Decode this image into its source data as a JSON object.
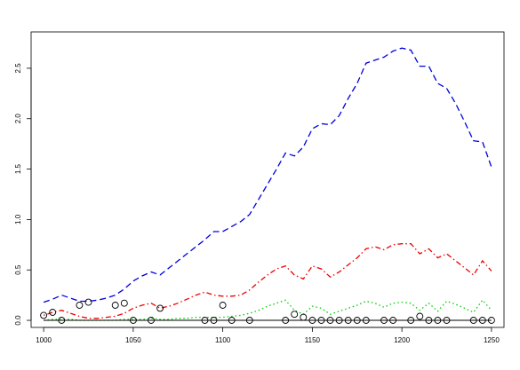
{
  "chart_data": {
    "type": "line",
    "xlim": [
      993,
      1257
    ],
    "ylim": [
      -0.07,
      2.86
    ],
    "x_ticks": [
      1000,
      1050,
      1100,
      1150,
      1200,
      1250
    ],
    "y_ticks": [
      0.0,
      0.5,
      1.0,
      1.5,
      2.0,
      2.5
    ],
    "x_tick_labels": [
      "1000",
      "1050",
      "1100",
      "1150",
      "1200",
      "1250"
    ],
    "y_tick_labels": [
      "0.0",
      "0.5",
      "1.0",
      "1.5",
      "2.0",
      "2.5"
    ],
    "series": [
      {
        "style": "dashed",
        "color": "#0000dd",
        "x": [
          1000,
          1005,
          1010,
          1015,
          1020,
          1025,
          1030,
          1035,
          1040,
          1045,
          1050,
          1055,
          1060,
          1065,
          1070,
          1075,
          1080,
          1085,
          1090,
          1095,
          1100,
          1105,
          1110,
          1115,
          1120,
          1125,
          1130,
          1135,
          1140,
          1145,
          1150,
          1155,
          1160,
          1165,
          1170,
          1175,
          1180,
          1185,
          1190,
          1195,
          1200,
          1205,
          1210,
          1215,
          1220,
          1225,
          1230,
          1235,
          1240,
          1245,
          1250
        ],
        "values": [
          0.18,
          0.21,
          0.25,
          0.22,
          0.19,
          0.19,
          0.2,
          0.22,
          0.25,
          0.31,
          0.39,
          0.44,
          0.48,
          0.45,
          0.52,
          0.59,
          0.66,
          0.73,
          0.8,
          0.88,
          0.88,
          0.93,
          0.98,
          1.05,
          1.2,
          1.35,
          1.5,
          1.66,
          1.63,
          1.72,
          1.9,
          1.95,
          1.94,
          2.03,
          2.2,
          2.35,
          2.55,
          2.58,
          2.61,
          2.67,
          2.7,
          2.68,
          2.52,
          2.52,
          2.35,
          2.3,
          2.15,
          1.97,
          1.78,
          1.77,
          1.52
        ]
      },
      {
        "style": "dotdash",
        "color": "#ee0000",
        "x": [
          1000,
          1005,
          1010,
          1015,
          1020,
          1025,
          1030,
          1035,
          1040,
          1045,
          1050,
          1055,
          1060,
          1065,
          1070,
          1075,
          1080,
          1085,
          1090,
          1095,
          1100,
          1105,
          1110,
          1115,
          1120,
          1125,
          1130,
          1135,
          1140,
          1145,
          1150,
          1155,
          1160,
          1165,
          1170,
          1175,
          1180,
          1185,
          1190,
          1195,
          1200,
          1205,
          1210,
          1215,
          1220,
          1225,
          1230,
          1235,
          1240,
          1245,
          1250
        ],
        "values": [
          0.05,
          0.08,
          0.1,
          0.07,
          0.04,
          0.02,
          0.02,
          0.03,
          0.04,
          0.07,
          0.12,
          0.15,
          0.17,
          0.12,
          0.14,
          0.17,
          0.21,
          0.25,
          0.28,
          0.25,
          0.24,
          0.24,
          0.25,
          0.3,
          0.38,
          0.45,
          0.51,
          0.54,
          0.45,
          0.41,
          0.54,
          0.51,
          0.43,
          0.48,
          0.55,
          0.62,
          0.71,
          0.73,
          0.7,
          0.75,
          0.76,
          0.76,
          0.66,
          0.71,
          0.62,
          0.66,
          0.59,
          0.52,
          0.45,
          0.59,
          0.49
        ]
      },
      {
        "style": "dotted",
        "color": "#00cc00",
        "x": [
          1000,
          1005,
          1010,
          1015,
          1020,
          1025,
          1030,
          1035,
          1040,
          1045,
          1050,
          1055,
          1060,
          1065,
          1070,
          1075,
          1080,
          1085,
          1090,
          1095,
          1100,
          1105,
          1110,
          1115,
          1120,
          1125,
          1130,
          1135,
          1140,
          1145,
          1150,
          1155,
          1160,
          1165,
          1170,
          1175,
          1180,
          1185,
          1190,
          1195,
          1200,
          1205,
          1210,
          1215,
          1220,
          1225,
          1230,
          1235,
          1240,
          1245,
          1250
        ],
        "values": [
          0.0,
          0.01,
          0.01,
          0.01,
          0.0,
          0.0,
          0.0,
          0.0,
          0.0,
          0.01,
          0.01,
          0.01,
          0.02,
          0.01,
          0.01,
          0.02,
          0.02,
          0.03,
          0.03,
          0.03,
          0.03,
          0.04,
          0.05,
          0.07,
          0.1,
          0.14,
          0.17,
          0.2,
          0.1,
          0.06,
          0.14,
          0.12,
          0.06,
          0.09,
          0.12,
          0.15,
          0.19,
          0.17,
          0.13,
          0.17,
          0.18,
          0.17,
          0.1,
          0.17,
          0.09,
          0.19,
          0.16,
          0.12,
          0.08,
          0.2,
          0.1
        ]
      },
      {
        "style": "solid",
        "color": "#000000",
        "x": [
          1000,
          1250
        ],
        "values": [
          0.0,
          0.0
        ]
      }
    ],
    "points": {
      "marker": "open-circle",
      "color": "#000000",
      "x": [
        1000,
        1005,
        1010,
        1020,
        1025,
        1040,
        1045,
        1050,
        1060,
        1065,
        1090,
        1095,
        1100,
        1105,
        1115,
        1135,
        1140,
        1145,
        1150,
        1155,
        1160,
        1165,
        1170,
        1175,
        1180,
        1190,
        1195,
        1205,
        1210,
        1215,
        1220,
        1225,
        1240,
        1245,
        1250
      ],
      "values": [
        0.05,
        0.08,
        0.0,
        0.15,
        0.18,
        0.15,
        0.17,
        0.0,
        0.0,
        0.12,
        0.0,
        0.0,
        0.15,
        0.0,
        0.0,
        0.0,
        0.06,
        0.03,
        0.0,
        0.0,
        0.0,
        0.0,
        0.0,
        0.0,
        0.0,
        0.0,
        0.0,
        0.0,
        0.04,
        0.0,
        0.0,
        0.0,
        0.0,
        0.0,
        0.0
      ]
    },
    "title": "",
    "xlabel": "",
    "ylabel": "",
    "grid": false,
    "legend": "none"
  }
}
